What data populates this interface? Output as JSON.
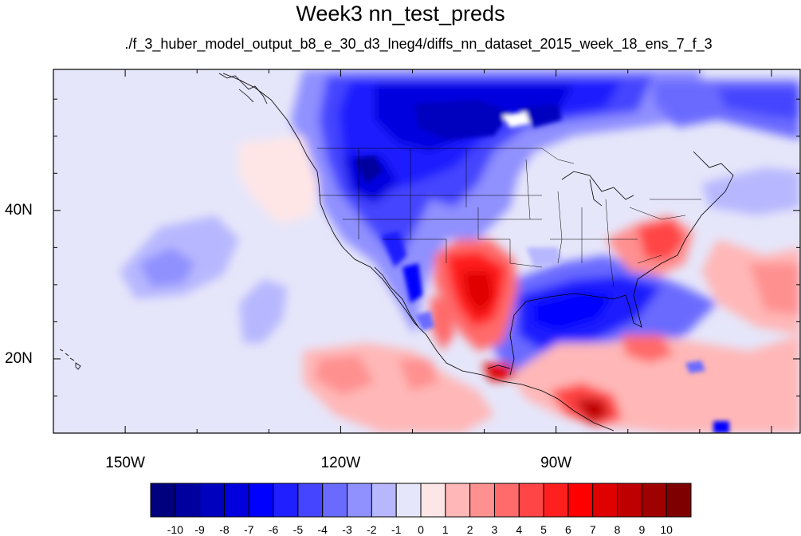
{
  "header": {
    "title": "Week3 nn_test_preds",
    "subtitle": "./f_3_huber_model_output_b8_e_30_d3_lneg4/diffs_nn_dataset_2015_week_18_ens_7_f_3"
  },
  "map": {
    "projection": "cylindrical-equidistant",
    "lon_range": [
      -160,
      -56
    ],
    "lat_range": [
      10,
      59
    ],
    "lon_labels": [
      "150W",
      "120W",
      "90W"
    ],
    "lat_labels": [
      "40N",
      "20N"
    ],
    "ocean_color": "#e6e6fa",
    "coastline_color": "#000000"
  },
  "colorbar": {
    "labels": [
      "-10",
      "-9",
      "-8",
      "-7",
      "-6",
      "-5",
      "-4",
      "-3",
      "-2",
      "-1",
      "0",
      "1",
      "2",
      "3",
      "4",
      "5",
      "6",
      "7",
      "8",
      "9",
      "10"
    ],
    "colors": [
      "#00007f",
      "#00009f",
      "#0000bf",
      "#0000df",
      "#0000ff",
      "#1f1fff",
      "#4545ff",
      "#6a6aff",
      "#9090ff",
      "#b7b7ff",
      "#e6e6fa",
      "#ffe6e6",
      "#ffb7b7",
      "#ff9090",
      "#ff6a6a",
      "#ff4545",
      "#ff1f1f",
      "#ff0000",
      "#df0000",
      "#bf0000",
      "#9f0000",
      "#7f0000"
    ]
  }
}
